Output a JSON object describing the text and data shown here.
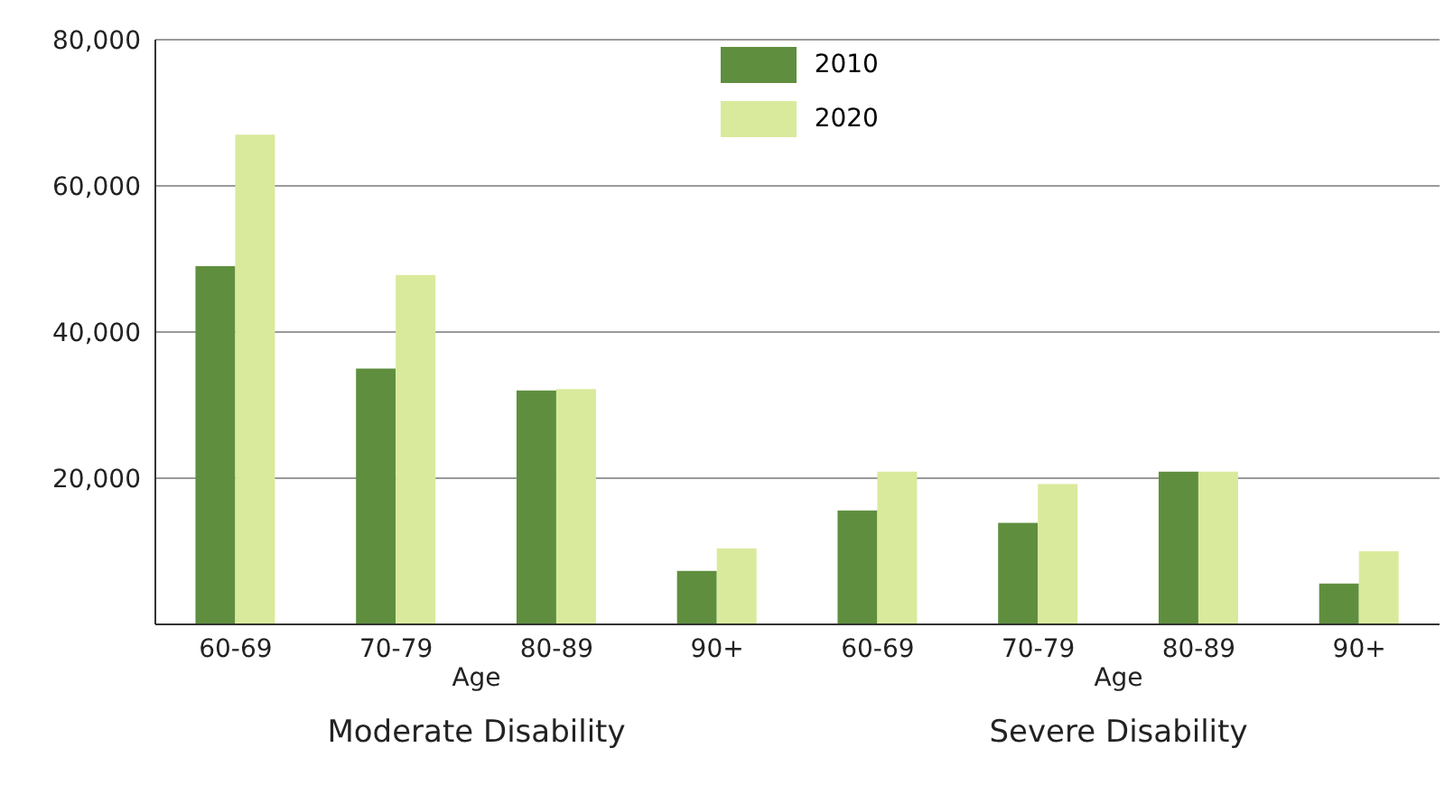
{
  "chart_data": {
    "type": "bar",
    "categories": [
      "60-69",
      "70-79",
      "80-89",
      "90+",
      "60-69",
      "70-79",
      "80-89",
      "90+"
    ],
    "series": [
      {
        "name": "2010",
        "color": "#5f8f3e",
        "values": [
          49000,
          35000,
          32000,
          7300,
          15600,
          13900,
          20900,
          5600
        ]
      },
      {
        "name": "2020",
        "color": "#d9ea9c",
        "values": [
          67000,
          47800,
          32200,
          10400,
          20900,
          19200,
          20900,
          10000
        ]
      }
    ],
    "ylim": [
      0,
      80000
    ],
    "yticks": [
      {
        "value": 20000,
        "label": "20,000"
      },
      {
        "value": 40000,
        "label": "40,000"
      },
      {
        "value": 60000,
        "label": "60,000"
      },
      {
        "value": 80000,
        "label": "80,000"
      }
    ],
    "grid": "y",
    "legend": "top",
    "annotations": [
      "Age",
      "Age",
      "Moderate Disability",
      "Severe Disability"
    ]
  }
}
